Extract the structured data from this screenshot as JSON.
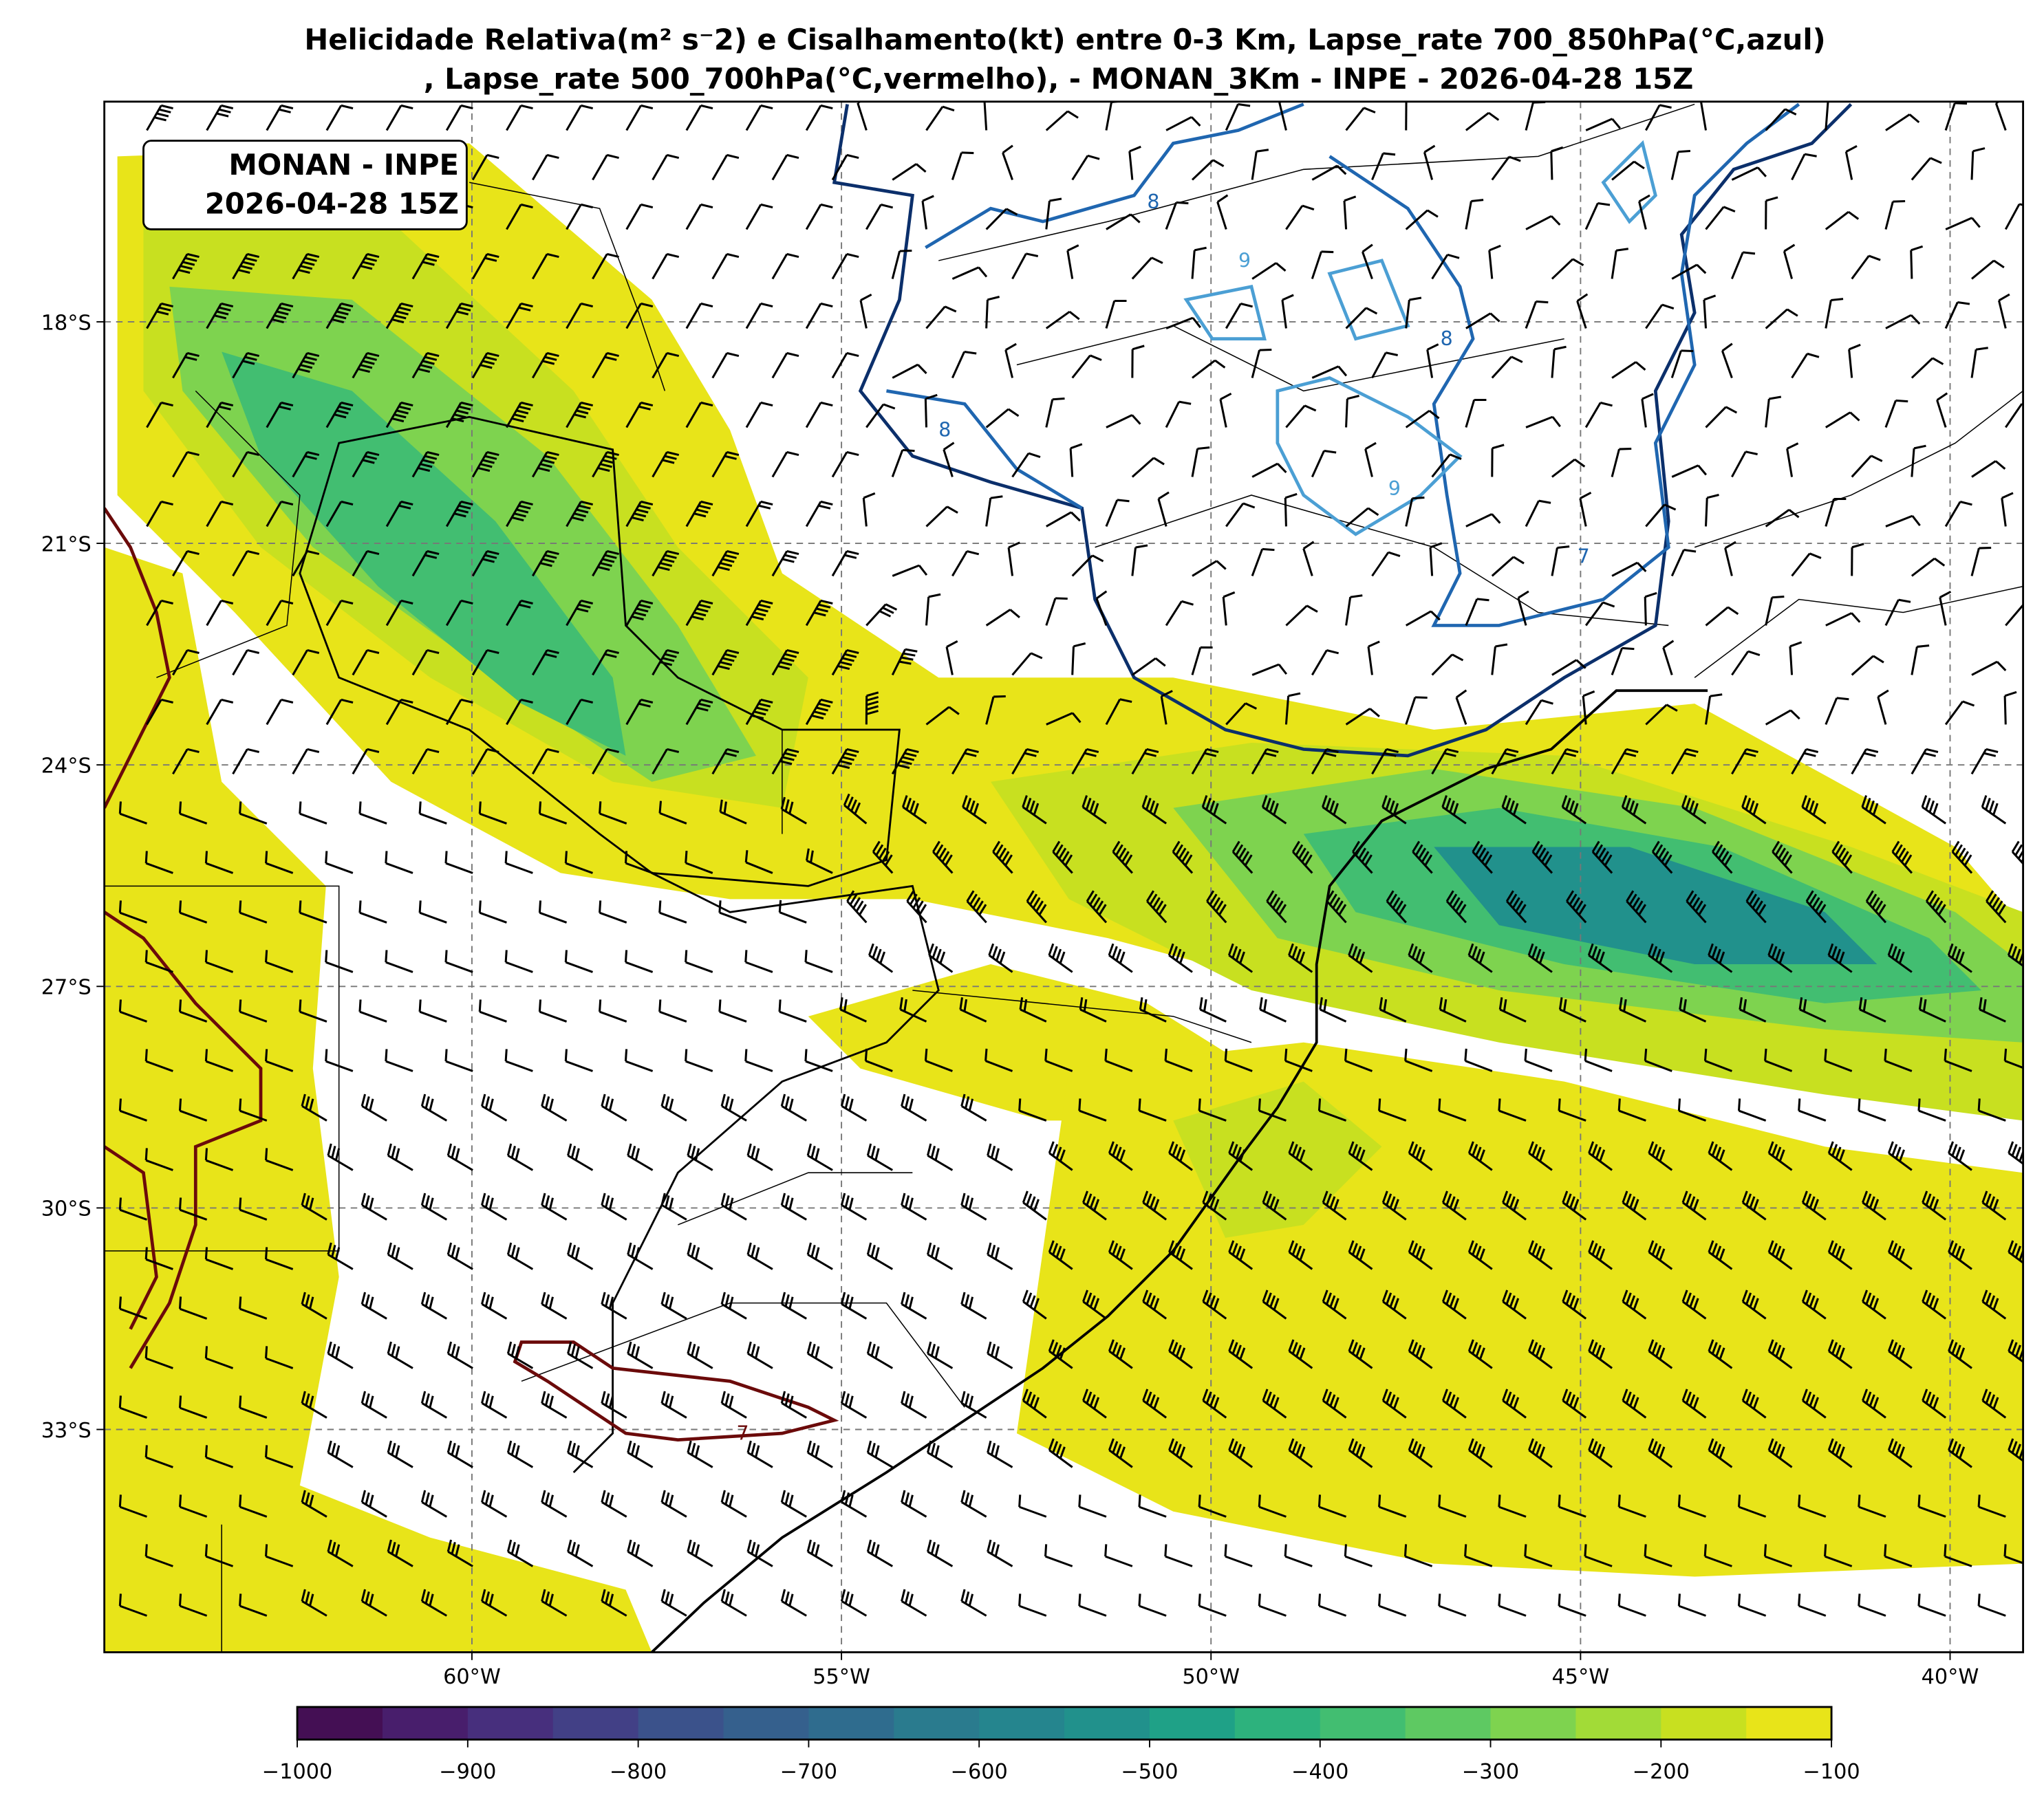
{
  "chart_data": {
    "type": "heatmap",
    "title_line1": "Helicidade Relativa(m² s⁻2) e Cisalhamento(kt) entre 0-3 Km, Lapse_rate 700_850hPa(°C,azul)",
    "title_line2": ", Lapse_rate 500_700hPa(°C,vermelho),  - MONAN_3Km - INPE - 2026-04-28 15Z",
    "info_box": [
      "MONAN - INPE",
      "2026-04-28 15Z"
    ],
    "lat_ticks": [
      "18°S",
      "21°S",
      "24°S",
      "27°S",
      "30°S",
      "33°S"
    ],
    "lon_ticks": [
      "60°W",
      "55°W",
      "50°W",
      "45°W",
      "40°W"
    ],
    "lat_range": [
      -36,
      -15.2
    ],
    "lon_range": [
      -65,
      -39
    ],
    "grid": true,
    "colorbar": {
      "levels": [
        -1000,
        -950,
        -900,
        -850,
        -800,
        -750,
        -700,
        -650,
        -600,
        -550,
        -500,
        -450,
        -400,
        -350,
        -300,
        -250,
        -200,
        -150,
        -100
      ],
      "tick_labels": [
        "−1000",
        "−900",
        "−800",
        "−700",
        "−600",
        "−500",
        "−400",
        "−300",
        "−200",
        "−100"
      ],
      "colors": [
        "#440f54",
        "#481e6c",
        "#472f7d",
        "#424086",
        "#3b528b",
        "#35608d",
        "#2f6c8e",
        "#2a7b8e",
        "#25858e",
        "#21918c",
        "#1fa187",
        "#2db27d",
        "#42be71",
        "#5ec962",
        "#7ed34f",
        "#a2db37",
        "#c8e020",
        "#e8e419"
      ],
      "position": "bottom"
    },
    "contour_labels": {
      "lapse_700_850_blue": [
        "8",
        "9",
        "7"
      ],
      "lapse_500_700_red": [
        "7"
      ]
    },
    "contour_colors": {
      "blue_dark": "#0b2f6b",
      "blue_mid": "#1f66b0",
      "blue_light": "#4b9fd4",
      "red": "#6b0a0a"
    }
  }
}
